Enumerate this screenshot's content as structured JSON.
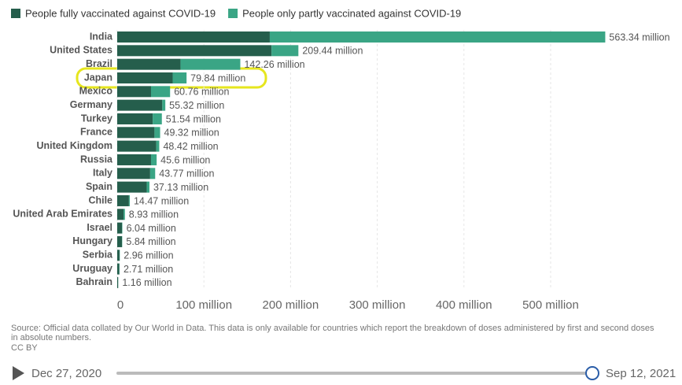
{
  "chart_data": {
    "type": "stacked-bar-horizontal",
    "categories": [
      "India",
      "United States",
      "Brazil",
      "Japan",
      "Mexico",
      "Germany",
      "Turkey",
      "France",
      "United Kingdom",
      "Russia",
      "Italy",
      "Spain",
      "Chile",
      "United Arab Emirates",
      "Israel",
      "Hungary",
      "Serbia",
      "Uruguay",
      "Bahrain"
    ],
    "series": [
      {
        "name": "People fully vaccinated against COVID-19",
        "color": "#255e4c",
        "values": [
          176,
          178,
          73,
          64,
          39,
          52,
          41,
          43,
          45,
          39,
          38,
          34,
          13.5,
          7.3,
          5.6,
          5.5,
          2.7,
          2.4,
          1.1
        ]
      },
      {
        "name": "People only partly vaccinated against COVID-19",
        "color": "#3aa585",
        "values": [
          387,
          31,
          69,
          16,
          22,
          3.5,
          10.5,
          6.5,
          3.5,
          6.5,
          5.8,
          3.2,
          1,
          1.6,
          0.4,
          0.3,
          0.3,
          0.3,
          0.1
        ]
      }
    ],
    "totals": {
      "values": [
        563.34,
        209.44,
        142.26,
        79.84,
        60.76,
        55.32,
        51.54,
        49.32,
        48.42,
        45.6,
        43.77,
        37.13,
        14.47,
        8.93,
        6.04,
        5.84,
        2.96,
        2.71,
        1.16
      ],
      "value_labels": [
        "563.34 million",
        "209.44 million",
        "142.26 million",
        "79.84 million",
        "60.76 million",
        "55.32 million",
        "51.54 million",
        "49.32 million",
        "48.42 million",
        "45.6 million",
        "43.77 million",
        "37.13 million",
        "14.47 million",
        "8.93 million",
        "6.04 million",
        "5.84 million",
        "2.96 million",
        "2.71 million",
        "1.16 million"
      ]
    },
    "xlim": [
      0,
      650
    ],
    "xticks": [
      0,
      {
        "value": 100,
        "label": "100 million"
      },
      {
        "value": 200,
        "label": "200 million"
      },
      {
        "value": 300,
        "label": "300 million"
      },
      {
        "value": 400,
        "label": "400 million"
      },
      {
        "value": 500,
        "label": "500 million"
      }
    ],
    "grid": true,
    "source": "Source: Official data collated by Our World in Data. This data is only available for countries which report the breakdown of doses administered by first and second doses in absolute numbers.",
    "license": "CC BY",
    "timeline": {
      "start": "Dec 27, 2020",
      "end": "Sep 12, 2021"
    }
  }
}
